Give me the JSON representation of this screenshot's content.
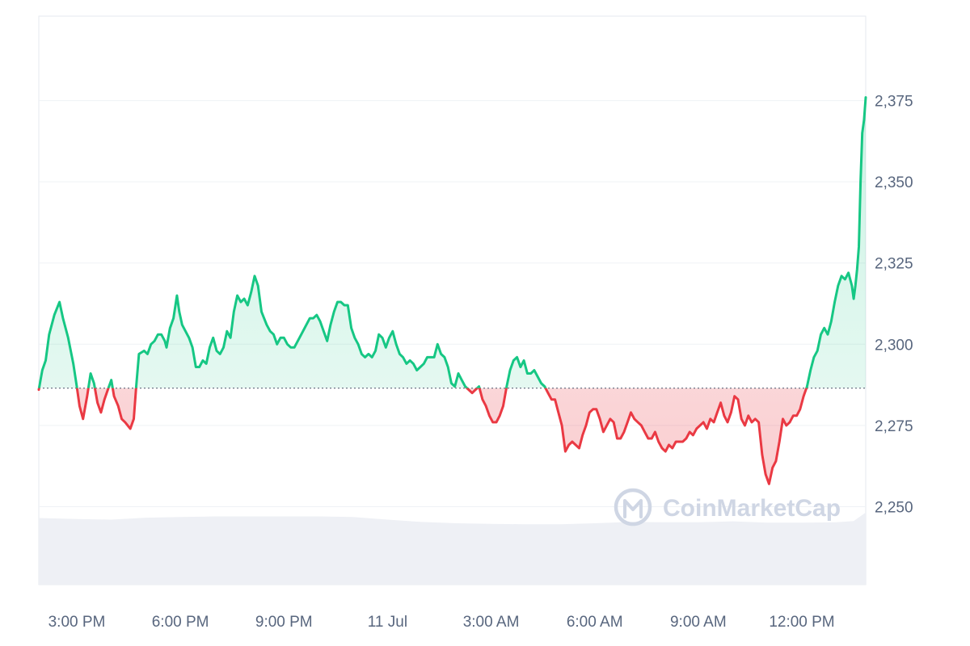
{
  "watermark": {
    "text": "CoinMarketCap"
  },
  "colors": {
    "up": "#16c784",
    "down": "#ea3943",
    "up_fill": "#16c784",
    "down_fill": "#ea3943",
    "volume_fill": "#eef0f5",
    "grid": "#eff2f5",
    "tick_text": "#58667e",
    "baseline": "#6c7486",
    "watermark": "#cfd6e4",
    "frame": "#e6e9ef"
  },
  "chart_data": {
    "type": "line",
    "title": "",
    "xlabel": "",
    "ylabel": "",
    "ylim": [
      2226,
      2401
    ],
    "y_ticks": [
      2250,
      2275,
      2300,
      2325,
      2350,
      2375
    ],
    "y_tick_labels": [
      "2,250",
      "2,275",
      "2,300",
      "2,325",
      "2,350",
      "2,375"
    ],
    "x_ticks": [
      {
        "label": "3:00 PM",
        "hour": 15
      },
      {
        "label": "6:00 PM",
        "hour": 18
      },
      {
        "label": "9:00 PM",
        "hour": 21
      },
      {
        "label": "11 Jul",
        "hour": 24
      },
      {
        "label": "3:00 AM",
        "hour": 27
      },
      {
        "label": "6:00 AM",
        "hour": 30
      },
      {
        "label": "9:00 AM",
        "hour": 33
      },
      {
        "label": "12:00 PM",
        "hour": 36
      }
    ],
    "x_range_hours": [
      13.9,
      37.85
    ],
    "baseline": 2286.5,
    "grid": true,
    "legend": "none",
    "series": [
      {
        "points": [
          [
            13.9,
            2286
          ],
          [
            14.0,
            2292
          ],
          [
            14.1,
            2295
          ],
          [
            14.2,
            2303
          ],
          [
            14.35,
            2309
          ],
          [
            14.5,
            2313
          ],
          [
            14.6,
            2308
          ],
          [
            14.75,
            2302
          ],
          [
            14.9,
            2294
          ],
          [
            15.0,
            2287
          ],
          [
            15.08,
            2281
          ],
          [
            15.18,
            2277
          ],
          [
            15.3,
            2284
          ],
          [
            15.4,
            2291
          ],
          [
            15.5,
            2288
          ],
          [
            15.6,
            2282
          ],
          [
            15.7,
            2279
          ],
          [
            15.8,
            2283
          ],
          [
            15.9,
            2286
          ],
          [
            16.0,
            2289
          ],
          [
            16.08,
            2284
          ],
          [
            16.2,
            2281
          ],
          [
            16.3,
            2277
          ],
          [
            16.4,
            2276
          ],
          [
            16.55,
            2274
          ],
          [
            16.65,
            2277
          ],
          [
            16.72,
            2287
          ],
          [
            16.8,
            2297
          ],
          [
            16.95,
            2298
          ],
          [
            17.05,
            2297
          ],
          [
            17.15,
            2300
          ],
          [
            17.25,
            2301
          ],
          [
            17.35,
            2303
          ],
          [
            17.45,
            2303
          ],
          [
            17.55,
            2301
          ],
          [
            17.6,
            2299
          ],
          [
            17.7,
            2305
          ],
          [
            17.8,
            2308
          ],
          [
            17.9,
            2315
          ],
          [
            17.97,
            2310
          ],
          [
            18.05,
            2306
          ],
          [
            18.15,
            2304
          ],
          [
            18.25,
            2302
          ],
          [
            18.35,
            2299
          ],
          [
            18.45,
            2293
          ],
          [
            18.55,
            2293
          ],
          [
            18.65,
            2295
          ],
          [
            18.75,
            2294
          ],
          [
            18.85,
            2299
          ],
          [
            18.95,
            2302
          ],
          [
            19.05,
            2298
          ],
          [
            19.15,
            2297
          ],
          [
            19.25,
            2299
          ],
          [
            19.35,
            2304
          ],
          [
            19.45,
            2302
          ],
          [
            19.55,
            2310
          ],
          [
            19.65,
            2315
          ],
          [
            19.75,
            2313
          ],
          [
            19.85,
            2314
          ],
          [
            19.95,
            2312
          ],
          [
            20.05,
            2316
          ],
          [
            20.15,
            2321
          ],
          [
            20.25,
            2318
          ],
          [
            20.35,
            2310
          ],
          [
            20.5,
            2306
          ],
          [
            20.6,
            2304
          ],
          [
            20.7,
            2303
          ],
          [
            20.8,
            2300
          ],
          [
            20.9,
            2302
          ],
          [
            21.0,
            2302
          ],
          [
            21.1,
            2300
          ],
          [
            21.2,
            2299
          ],
          [
            21.3,
            2299
          ],
          [
            21.45,
            2302
          ],
          [
            21.55,
            2304
          ],
          [
            21.65,
            2306
          ],
          [
            21.75,
            2308
          ],
          [
            21.85,
            2308
          ],
          [
            21.95,
            2309
          ],
          [
            22.05,
            2307
          ],
          [
            22.15,
            2304
          ],
          [
            22.25,
            2301
          ],
          [
            22.35,
            2306
          ],
          [
            22.45,
            2310
          ],
          [
            22.55,
            2313
          ],
          [
            22.65,
            2313
          ],
          [
            22.75,
            2312
          ],
          [
            22.85,
            2312
          ],
          [
            22.95,
            2305
          ],
          [
            23.05,
            2302
          ],
          [
            23.15,
            2300
          ],
          [
            23.25,
            2297
          ],
          [
            23.35,
            2296
          ],
          [
            23.45,
            2297
          ],
          [
            23.55,
            2296
          ],
          [
            23.65,
            2298
          ],
          [
            23.75,
            2303
          ],
          [
            23.85,
            2302
          ],
          [
            23.95,
            2299
          ],
          [
            24.05,
            2302
          ],
          [
            24.15,
            2304
          ],
          [
            24.25,
            2300
          ],
          [
            24.35,
            2297
          ],
          [
            24.45,
            2296
          ],
          [
            24.55,
            2294
          ],
          [
            24.65,
            2295
          ],
          [
            24.75,
            2294
          ],
          [
            24.85,
            2292
          ],
          [
            24.95,
            2293
          ],
          [
            25.05,
            2294
          ],
          [
            25.15,
            2296
          ],
          [
            25.25,
            2296
          ],
          [
            25.35,
            2296
          ],
          [
            25.45,
            2300
          ],
          [
            25.55,
            2297
          ],
          [
            25.65,
            2296
          ],
          [
            25.75,
            2293
          ],
          [
            25.85,
            2288
          ],
          [
            25.95,
            2287
          ],
          [
            26.05,
            2291
          ],
          [
            26.15,
            2289
          ],
          [
            26.25,
            2287
          ],
          [
            26.35,
            2286
          ],
          [
            26.45,
            2285
          ],
          [
            26.55,
            2286
          ],
          [
            26.65,
            2287
          ],
          [
            26.75,
            2283
          ],
          [
            26.85,
            2281
          ],
          [
            26.95,
            2278
          ],
          [
            27.05,
            2276
          ],
          [
            27.15,
            2276
          ],
          [
            27.25,
            2278
          ],
          [
            27.35,
            2281
          ],
          [
            27.45,
            2287
          ],
          [
            27.55,
            2292
          ],
          [
            27.65,
            2295
          ],
          [
            27.75,
            2296
          ],
          [
            27.85,
            2293
          ],
          [
            27.95,
            2295
          ],
          [
            28.05,
            2291
          ],
          [
            28.15,
            2291
          ],
          [
            28.25,
            2292
          ],
          [
            28.35,
            2290
          ],
          [
            28.45,
            2288
          ],
          [
            28.55,
            2287
          ],
          [
            28.65,
            2285
          ],
          [
            28.75,
            2283
          ],
          [
            28.85,
            2283
          ],
          [
            28.95,
            2279
          ],
          [
            29.05,
            2275
          ],
          [
            29.15,
            2267
          ],
          [
            29.25,
            2269
          ],
          [
            29.35,
            2270
          ],
          [
            29.45,
            2269
          ],
          [
            29.55,
            2268
          ],
          [
            29.65,
            2272
          ],
          [
            29.75,
            2275
          ],
          [
            29.85,
            2279
          ],
          [
            29.95,
            2280
          ],
          [
            30.05,
            2280
          ],
          [
            30.15,
            2277
          ],
          [
            30.25,
            2273
          ],
          [
            30.35,
            2275
          ],
          [
            30.45,
            2277
          ],
          [
            30.55,
            2276
          ],
          [
            30.65,
            2271
          ],
          [
            30.75,
            2271
          ],
          [
            30.85,
            2273
          ],
          [
            30.95,
            2276
          ],
          [
            31.05,
            2279
          ],
          [
            31.15,
            2277
          ],
          [
            31.25,
            2276
          ],
          [
            31.35,
            2275
          ],
          [
            31.45,
            2273
          ],
          [
            31.55,
            2271
          ],
          [
            31.65,
            2271
          ],
          [
            31.75,
            2273
          ],
          [
            31.85,
            2270
          ],
          [
            31.95,
            2268
          ],
          [
            32.05,
            2267
          ],
          [
            32.15,
            2269
          ],
          [
            32.25,
            2268
          ],
          [
            32.35,
            2270
          ],
          [
            32.45,
            2270
          ],
          [
            32.55,
            2270
          ],
          [
            32.65,
            2271
          ],
          [
            32.75,
            2273
          ],
          [
            32.85,
            2272
          ],
          [
            32.95,
            2274
          ],
          [
            33.05,
            2275
          ],
          [
            33.15,
            2276
          ],
          [
            33.25,
            2274
          ],
          [
            33.35,
            2277
          ],
          [
            33.45,
            2276
          ],
          [
            33.55,
            2279
          ],
          [
            33.65,
            2282
          ],
          [
            33.75,
            2278
          ],
          [
            33.85,
            2276
          ],
          [
            33.95,
            2279
          ],
          [
            34.05,
            2284
          ],
          [
            34.15,
            2283
          ],
          [
            34.25,
            2277
          ],
          [
            34.35,
            2275
          ],
          [
            34.45,
            2278
          ],
          [
            34.55,
            2276
          ],
          [
            34.65,
            2277
          ],
          [
            34.75,
            2276
          ],
          [
            34.85,
            2266
          ],
          [
            34.95,
            2260
          ],
          [
            35.05,
            2257
          ],
          [
            35.15,
            2262
          ],
          [
            35.25,
            2264
          ],
          [
            35.35,
            2270
          ],
          [
            35.45,
            2277
          ],
          [
            35.55,
            2275
          ],
          [
            35.65,
            2276
          ],
          [
            35.75,
            2278
          ],
          [
            35.85,
            2278
          ],
          [
            35.95,
            2280
          ],
          [
            36.05,
            2284
          ],
          [
            36.15,
            2287
          ],
          [
            36.25,
            2292
          ],
          [
            36.35,
            2296
          ],
          [
            36.45,
            2298
          ],
          [
            36.55,
            2303
          ],
          [
            36.65,
            2305
          ],
          [
            36.75,
            2303
          ],
          [
            36.85,
            2307
          ],
          [
            36.95,
            2313
          ],
          [
            37.05,
            2318
          ],
          [
            37.15,
            2321
          ],
          [
            37.25,
            2320
          ],
          [
            37.35,
            2322
          ],
          [
            37.45,
            2318
          ],
          [
            37.5,
            2314
          ],
          [
            37.55,
            2318
          ],
          [
            37.6,
            2323
          ],
          [
            37.65,
            2330
          ],
          [
            37.7,
            2350
          ],
          [
            37.75,
            2365
          ],
          [
            37.8,
            2369
          ],
          [
            37.85,
            2376
          ]
        ]
      }
    ],
    "volume": {
      "points": [
        [
          13.9,
          2246.5
        ],
        [
          15.0,
          2246.2
        ],
        [
          16.0,
          2246.0
        ],
        [
          17.0,
          2246.6
        ],
        [
          18.0,
          2246.8
        ],
        [
          19.0,
          2247.0
        ],
        [
          20.0,
          2247.0
        ],
        [
          21.0,
          2247.0
        ],
        [
          22.0,
          2247.0
        ],
        [
          23.0,
          2246.8
        ],
        [
          24.0,
          2246.0
        ],
        [
          25.0,
          2245.3
        ],
        [
          26.0,
          2244.9
        ],
        [
          27.0,
          2244.7
        ],
        [
          28.0,
          2244.6
        ],
        [
          29.0,
          2244.6
        ],
        [
          30.0,
          2244.9
        ],
        [
          31.0,
          2245.3
        ],
        [
          32.0,
          2245.2
        ],
        [
          33.0,
          2245.2
        ],
        [
          34.0,
          2245.5
        ],
        [
          35.0,
          2245.1
        ],
        [
          36.0,
          2245.1
        ],
        [
          37.0,
          2245.2
        ],
        [
          37.5,
          2245.6
        ],
        [
          37.85,
          2248.2
        ]
      ]
    }
  }
}
